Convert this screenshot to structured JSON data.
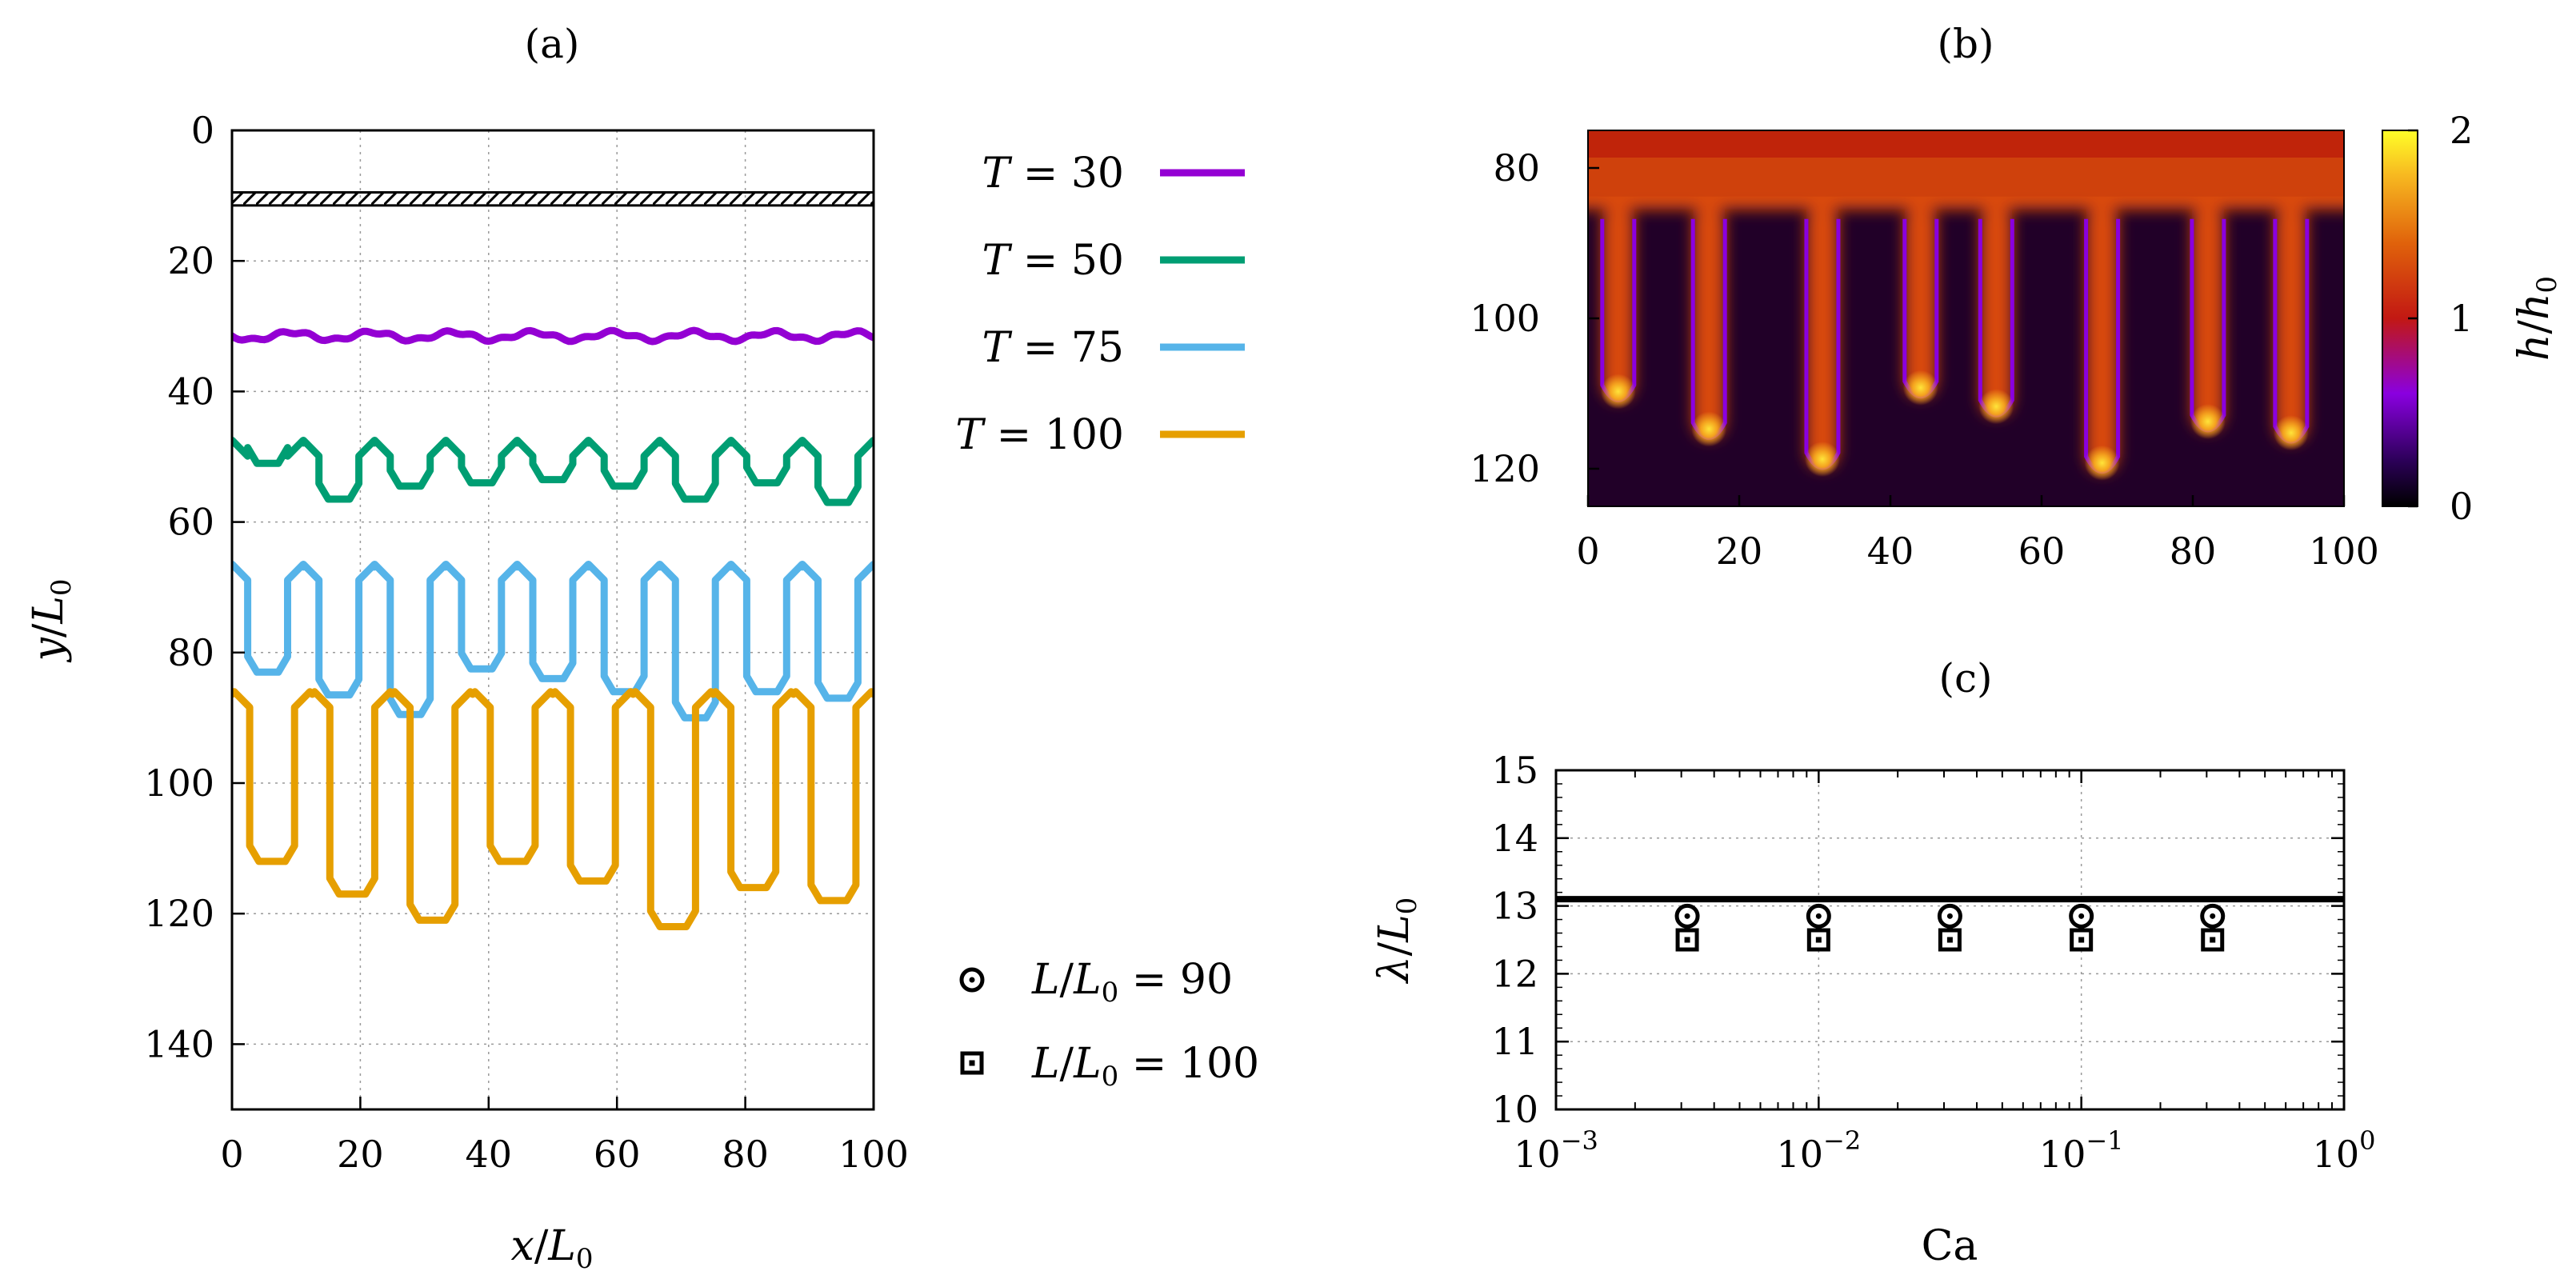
{
  "chart_data": [
    {
      "id": "a",
      "type": "line",
      "panel_label": "(a)",
      "xlabel": "x/L0",
      "ylabel": "y/L0",
      "xlim": [
        0,
        100
      ],
      "ylim": [
        150,
        0
      ],
      "xticks": [
        "0",
        "20",
        "40",
        "60",
        "80",
        "100"
      ],
      "yticks": [
        "0",
        "20",
        "40",
        "60",
        "80",
        "100",
        "120",
        "140"
      ],
      "grid": true,
      "wall_y": [
        9.5,
        11.5
      ],
      "legend_position": "right",
      "series": [
        {
          "name": "T = 30",
          "label": "T = 30",
          "color": "#9400d3",
          "kind": "wave",
          "base": 31.5,
          "amp": 0.6,
          "lambda": 12.5
        },
        {
          "name": "T = 50",
          "label": "T = 50",
          "color": "#009e73",
          "kind": "fingers",
          "top": 47.5,
          "tips": [
            51,
            56.5,
            54.5,
            54,
            53.5,
            54.5,
            56.5,
            54,
            57
          ]
        },
        {
          "name": "T = 75",
          "label": "T = 75",
          "color": "#56b4e9",
          "kind": "fingers",
          "top": 66.5,
          "tips": [
            83,
            86.5,
            89.5,
            82.5,
            84,
            86,
            90,
            86,
            87
          ]
        },
        {
          "name": "T = 100",
          "label": "T = 100",
          "color": "#e69f00",
          "kind": "fingers",
          "top": 86,
          "tips": [
            112,
            117,
            121,
            112,
            115,
            122,
            116,
            118
          ]
        }
      ]
    },
    {
      "id": "b",
      "type": "heatmap",
      "panel_label": "(b)",
      "xlim": [
        0,
        100
      ],
      "ylim": [
        125,
        75
      ],
      "xticks": [
        "0",
        "20",
        "40",
        "60",
        "80",
        "100"
      ],
      "yticks": [
        "80",
        "100",
        "120"
      ],
      "colorbar_label": "h/h0",
      "colorbar_ticks": [
        "0",
        "1",
        "2"
      ],
      "colorbar_range": [
        0,
        2
      ],
      "interface_y": 85.5,
      "fingers": [
        {
          "x": 4,
          "tip": 111
        },
        {
          "x": 16,
          "tip": 116
        },
        {
          "x": 31,
          "tip": 120
        },
        {
          "x": 44,
          "tip": 110.5
        },
        {
          "x": 54,
          "tip": 113
        },
        {
          "x": 68,
          "tip": 120.5
        },
        {
          "x": 82,
          "tip": 115
        },
        {
          "x": 93,
          "tip": 116.5
        }
      ]
    },
    {
      "id": "c",
      "type": "scatter",
      "panel_label": "(c)",
      "xlabel": "Ca",
      "ylabel": "λ/L0",
      "xscale": "log",
      "xlim": [
        0.001,
        1
      ],
      "ylim": [
        10,
        15
      ],
      "xticks": [
        {
          "base": "10",
          "exp": "−3"
        },
        {
          "base": "10",
          "exp": "−2"
        },
        {
          "base": "10",
          "exp": "−1"
        },
        {
          "base": "10",
          "exp": "0"
        }
      ],
      "yticks": [
        "10",
        "11",
        "12",
        "13",
        "14",
        "15"
      ],
      "grid": true,
      "reference_line": 13.1,
      "series": [
        {
          "name": "L/L0 = 90",
          "legend": "L/L0 = 90",
          "marker": "circle-dot",
          "x": [
            0.00316,
            0.01,
            0.0316,
            0.1,
            0.316
          ],
          "y": [
            12.85,
            12.85,
            12.85,
            12.85,
            12.85
          ]
        },
        {
          "name": "L/L0 = 100",
          "legend": "L/L0 = 100",
          "marker": "square-dot",
          "x": [
            0.00316,
            0.01,
            0.0316,
            0.1,
            0.316
          ],
          "y": [
            12.5,
            12.5,
            12.5,
            12.5,
            12.5
          ]
        }
      ]
    }
  ]
}
